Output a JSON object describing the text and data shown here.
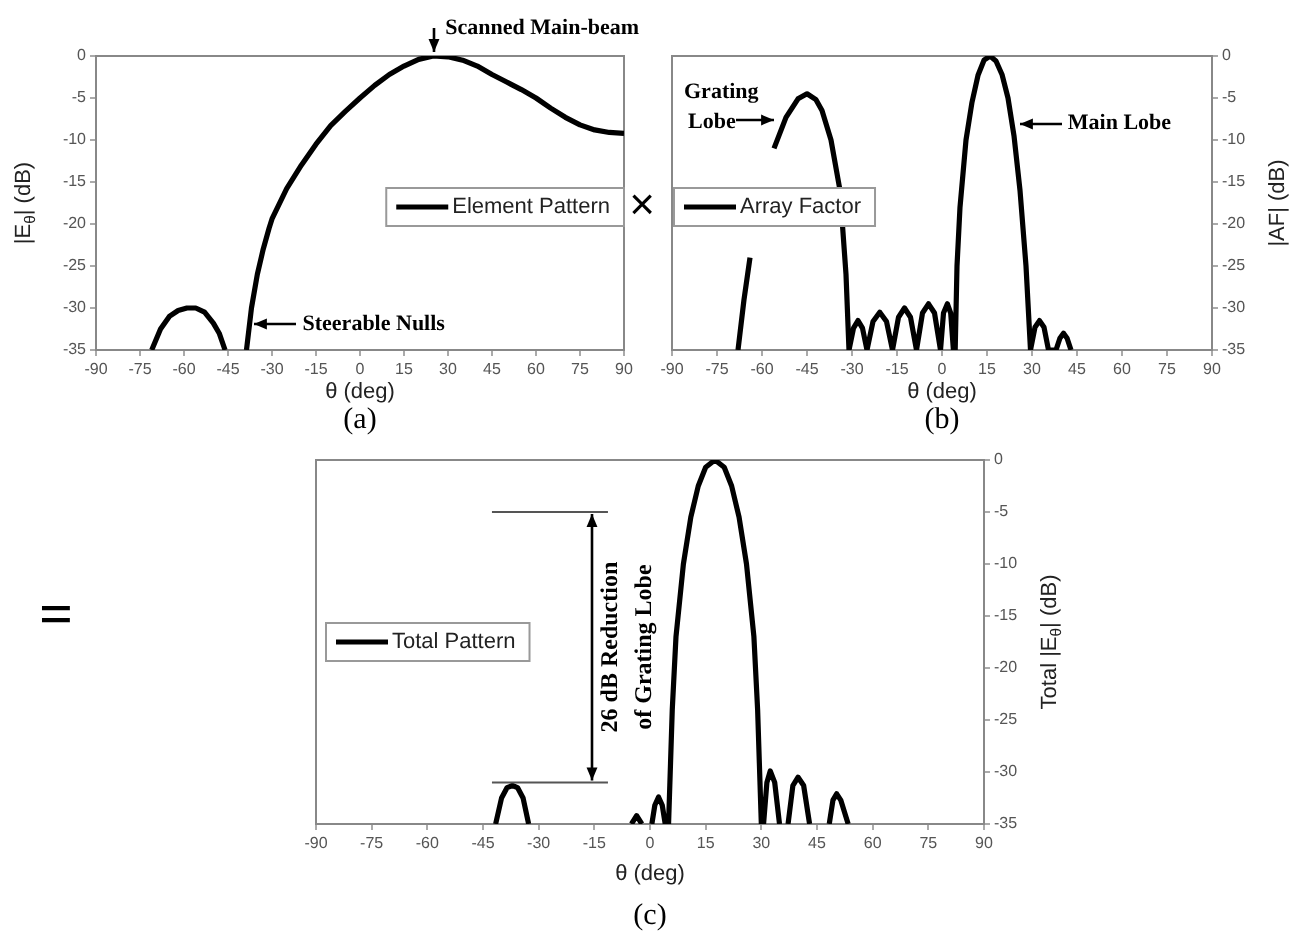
{
  "chart_data": [
    {
      "type": "line",
      "xlabel": "θ (deg)",
      "ylabel": "|E$_{θ}$| (dB)",
      "xlim": [
        -90,
        90
      ],
      "ylim": [
        -35,
        0
      ],
      "xticks": [
        -90,
        -75,
        -60,
        -45,
        -30,
        -15,
        0,
        15,
        30,
        45,
        60,
        75,
        90
      ],
      "yticks": [
        -35,
        -30,
        -25,
        -20,
        -15,
        -10,
        -5,
        0
      ],
      "legend": "right",
      "series": [
        {
          "name": "Element Pattern",
          "color": "#000000",
          "x": [
            -71,
            -68,
            -65,
            -62,
            -59,
            -56,
            -53,
            -50,
            -48,
            -46,
            -42,
            -38.7,
            -37,
            -35,
            -33,
            -31,
            -30,
            -25,
            -20,
            -15,
            -10,
            -5,
            0,
            5,
            10,
            15,
            20,
            25,
            30,
            35,
            40,
            45,
            50,
            55,
            60,
            65,
            70,
            75,
            80,
            85,
            90
          ],
          "values": [
            -35,
            -32.5,
            -31,
            -30.3,
            -30,
            -30,
            -30.5,
            -31.8,
            -33,
            -35,
            null,
            -35,
            -30,
            -26,
            -23,
            -20.5,
            -19.4,
            -15.8,
            -13,
            -10.5,
            -8.3,
            -6.6,
            -5,
            -3.5,
            -2.2,
            -1.2,
            -0.4,
            0,
            -0.1,
            -0.5,
            -1.2,
            -2.2,
            -3.1,
            -4,
            -5,
            -6.2,
            -7.3,
            -8.2,
            -8.8,
            -9.1,
            -9.2
          ]
        }
      ],
      "annotations": [
        {
          "text": "Scanned Main-beam",
          "x": 25,
          "y": 0
        },
        {
          "text": "Steerable Nulls",
          "x": -38,
          "y": -32
        },
        "(a)",
        "×"
      ]
    },
    {
      "type": "line",
      "xlabel": "θ (deg)",
      "y2label": "|AF| (dB)",
      "xlim": [
        -90,
        90
      ],
      "y2lim": [
        -35,
        0
      ],
      "xticks": [
        -90,
        -75,
        -60,
        -45,
        -30,
        -15,
        0,
        15,
        30,
        45,
        60,
        75,
        90
      ],
      "y2ticks": [
        -35,
        -30,
        -25,
        -20,
        -15,
        -10,
        -5,
        0
      ],
      "legend": "left",
      "series": [
        {
          "name": "Array Factor",
          "color": "#000000",
          "axis": "y2",
          "x": [
            -68,
            -66,
            -64,
            -60,
            -56,
            -52,
            -48,
            -45,
            -42,
            -40,
            -37,
            -34,
            -32,
            -31,
            -29.5,
            -28,
            -26.5,
            -25,
            -23,
            -20.75,
            -18.5,
            -16.5,
            -14.5,
            -12.5,
            -10.5,
            -8.5,
            -6.5,
            -4.5,
            -2.5,
            -0.5,
            0.5,
            1.8,
            2.9,
            3.8,
            4.4,
            5,
            6,
            8,
            10,
            12,
            14,
            16,
            18,
            20,
            22,
            24,
            26,
            28,
            29.5,
            31,
            32.5,
            34,
            35.5,
            38,
            39.3,
            40.5,
            41.7,
            43
          ],
          "values": [
            -35,
            -29,
            -24,
            null,
            -11,
            -7.3,
            -5.1,
            -4.5,
            -5.2,
            -6.5,
            -10,
            -16,
            -26,
            -35,
            -32.4,
            -31.5,
            -32.4,
            -35,
            -31.6,
            -30.5,
            -31.6,
            -35,
            -31.1,
            -30,
            -31.1,
            -35,
            -30.6,
            -29.5,
            -30.6,
            -35,
            -30.6,
            -29.5,
            -30.6,
            -35,
            -35,
            -25,
            -18,
            -10,
            -5.5,
            -2.3,
            -0.5,
            0,
            -0.6,
            -2.2,
            -5,
            -9.5,
            -16,
            -25,
            -35,
            -32.3,
            -31.5,
            -32.3,
            -35,
            -35,
            -33.6,
            -33,
            -33.6,
            -35
          ]
        }
      ],
      "annotations": [
        "Grating Lobe",
        "Main Lobe",
        "(b)"
      ]
    },
    {
      "type": "line",
      "xlabel": "θ (deg)",
      "y2label": "Total |E$_{θ}$| (dB)",
      "xlim": [
        -90,
        90
      ],
      "y2lim": [
        -35,
        0
      ],
      "xticks": [
        -90,
        -75,
        -60,
        -45,
        -30,
        -15,
        0,
        15,
        30,
        45,
        60,
        75,
        90
      ],
      "y2ticks": [
        -35,
        -30,
        -25,
        -20,
        -15,
        -10,
        -5,
        0
      ],
      "legend": "left",
      "series": [
        {
          "name": "Total Pattern",
          "color": "#000000",
          "axis": "y2",
          "x": [
            -41.6,
            -40,
            -38.5,
            -37.1,
            -35.7,
            -34.2,
            -32.7,
            -20,
            -5,
            -3.6,
            -2.2,
            -1,
            0.5,
            1.3,
            2.3,
            3.3,
            4.1,
            5,
            6,
            7,
            9,
            11,
            13,
            15,
            17.5,
            20,
            22,
            24,
            26,
            28,
            29,
            30,
            30.6,
            31.5,
            32.4,
            33.6,
            34.9,
            36,
            37.2,
            38.5,
            39.9,
            41.4,
            43,
            45,
            48.3,
            49.3,
            50.3,
            51.4,
            53.4
          ],
          "values": [
            -35,
            -32.5,
            -31.5,
            -31.3,
            -31.5,
            -32.5,
            -35,
            null,
            -35,
            -34.2,
            -35,
            null,
            -35,
            -33.2,
            -32.4,
            -33.2,
            -35,
            -35,
            -24,
            -17,
            -10,
            -5.5,
            -2.5,
            -0.7,
            0,
            -0.7,
            -2.5,
            -5.5,
            -10,
            -17,
            -24,
            -35,
            -35,
            -31,
            -29.9,
            -31,
            -35,
            null,
            -35,
            -31.3,
            -30.5,
            -31.3,
            -35,
            null,
            -35,
            -32.7,
            -32.1,
            -32.7,
            -35
          ]
        }
      ],
      "ref_lines": [
        {
          "axis": "y2",
          "value": -5
        },
        {
          "axis": "y2",
          "value": -31
        }
      ],
      "annotations": [
        "26 dB Reduction of Grating Lobe",
        "(c)",
        "="
      ]
    }
  ]
}
